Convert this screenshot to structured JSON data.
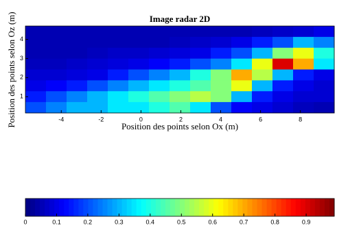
{
  "chart_data": {
    "type": "heatmap",
    "title": "Image radar 2D",
    "xlabel": "Position des points selon Ox (m)",
    "ylabel": "Position des points selon Oz (m)",
    "xlim": [
      -5.8,
      9.7
    ],
    "ylim": [
      0.15,
      4.7
    ],
    "xticks": [
      -4,
      -2,
      0,
      2,
      4,
      6,
      8
    ],
    "yticks": [
      1,
      2,
      3,
      4
    ],
    "colormap": "jet",
    "clim": [
      0,
      0.99
    ],
    "cticks": [
      0,
      0.1,
      0.2,
      0.3,
      0.4,
      0.5,
      0.6,
      0.7,
      0.8,
      0.9
    ],
    "z": [
      [
        0.05,
        0.05,
        0.05,
        0.05,
        0.05,
        0.05,
        0.05,
        0.05,
        0.05,
        0.05,
        0.05,
        0.06,
        0.07,
        0.08,
        0.1
      ],
      [
        0.05,
        0.05,
        0.05,
        0.05,
        0.05,
        0.05,
        0.05,
        0.06,
        0.07,
        0.08,
        0.1,
        0.15,
        0.2,
        0.3,
        0.25
      ],
      [
        0.05,
        0.05,
        0.05,
        0.06,
        0.07,
        0.07,
        0.08,
        0.09,
        0.1,
        0.15,
        0.2,
        0.3,
        0.5,
        0.6,
        0.4
      ],
      [
        0.06,
        0.06,
        0.07,
        0.08,
        0.09,
        0.1,
        0.12,
        0.15,
        0.2,
        0.25,
        0.35,
        0.6,
        0.9,
        0.7,
        0.35
      ],
      [
        0.08,
        0.08,
        0.09,
        0.1,
        0.15,
        0.2,
        0.25,
        0.3,
        0.4,
        0.5,
        0.7,
        0.55,
        0.3,
        0.15,
        0.1
      ],
      [
        0.1,
        0.12,
        0.15,
        0.2,
        0.25,
        0.3,
        0.35,
        0.4,
        0.45,
        0.5,
        0.6,
        0.3,
        0.15,
        0.1,
        0.08
      ],
      [
        0.15,
        0.2,
        0.25,
        0.3,
        0.35,
        0.4,
        0.45,
        0.5,
        0.55,
        0.5,
        0.3,
        0.15,
        0.1,
        0.08,
        0.08
      ],
      [
        0.2,
        0.25,
        0.3,
        0.3,
        0.35,
        0.35,
        0.4,
        0.45,
        0.35,
        0.2,
        0.12,
        0.1,
        0.08,
        0.06,
        0.05
      ]
    ]
  }
}
